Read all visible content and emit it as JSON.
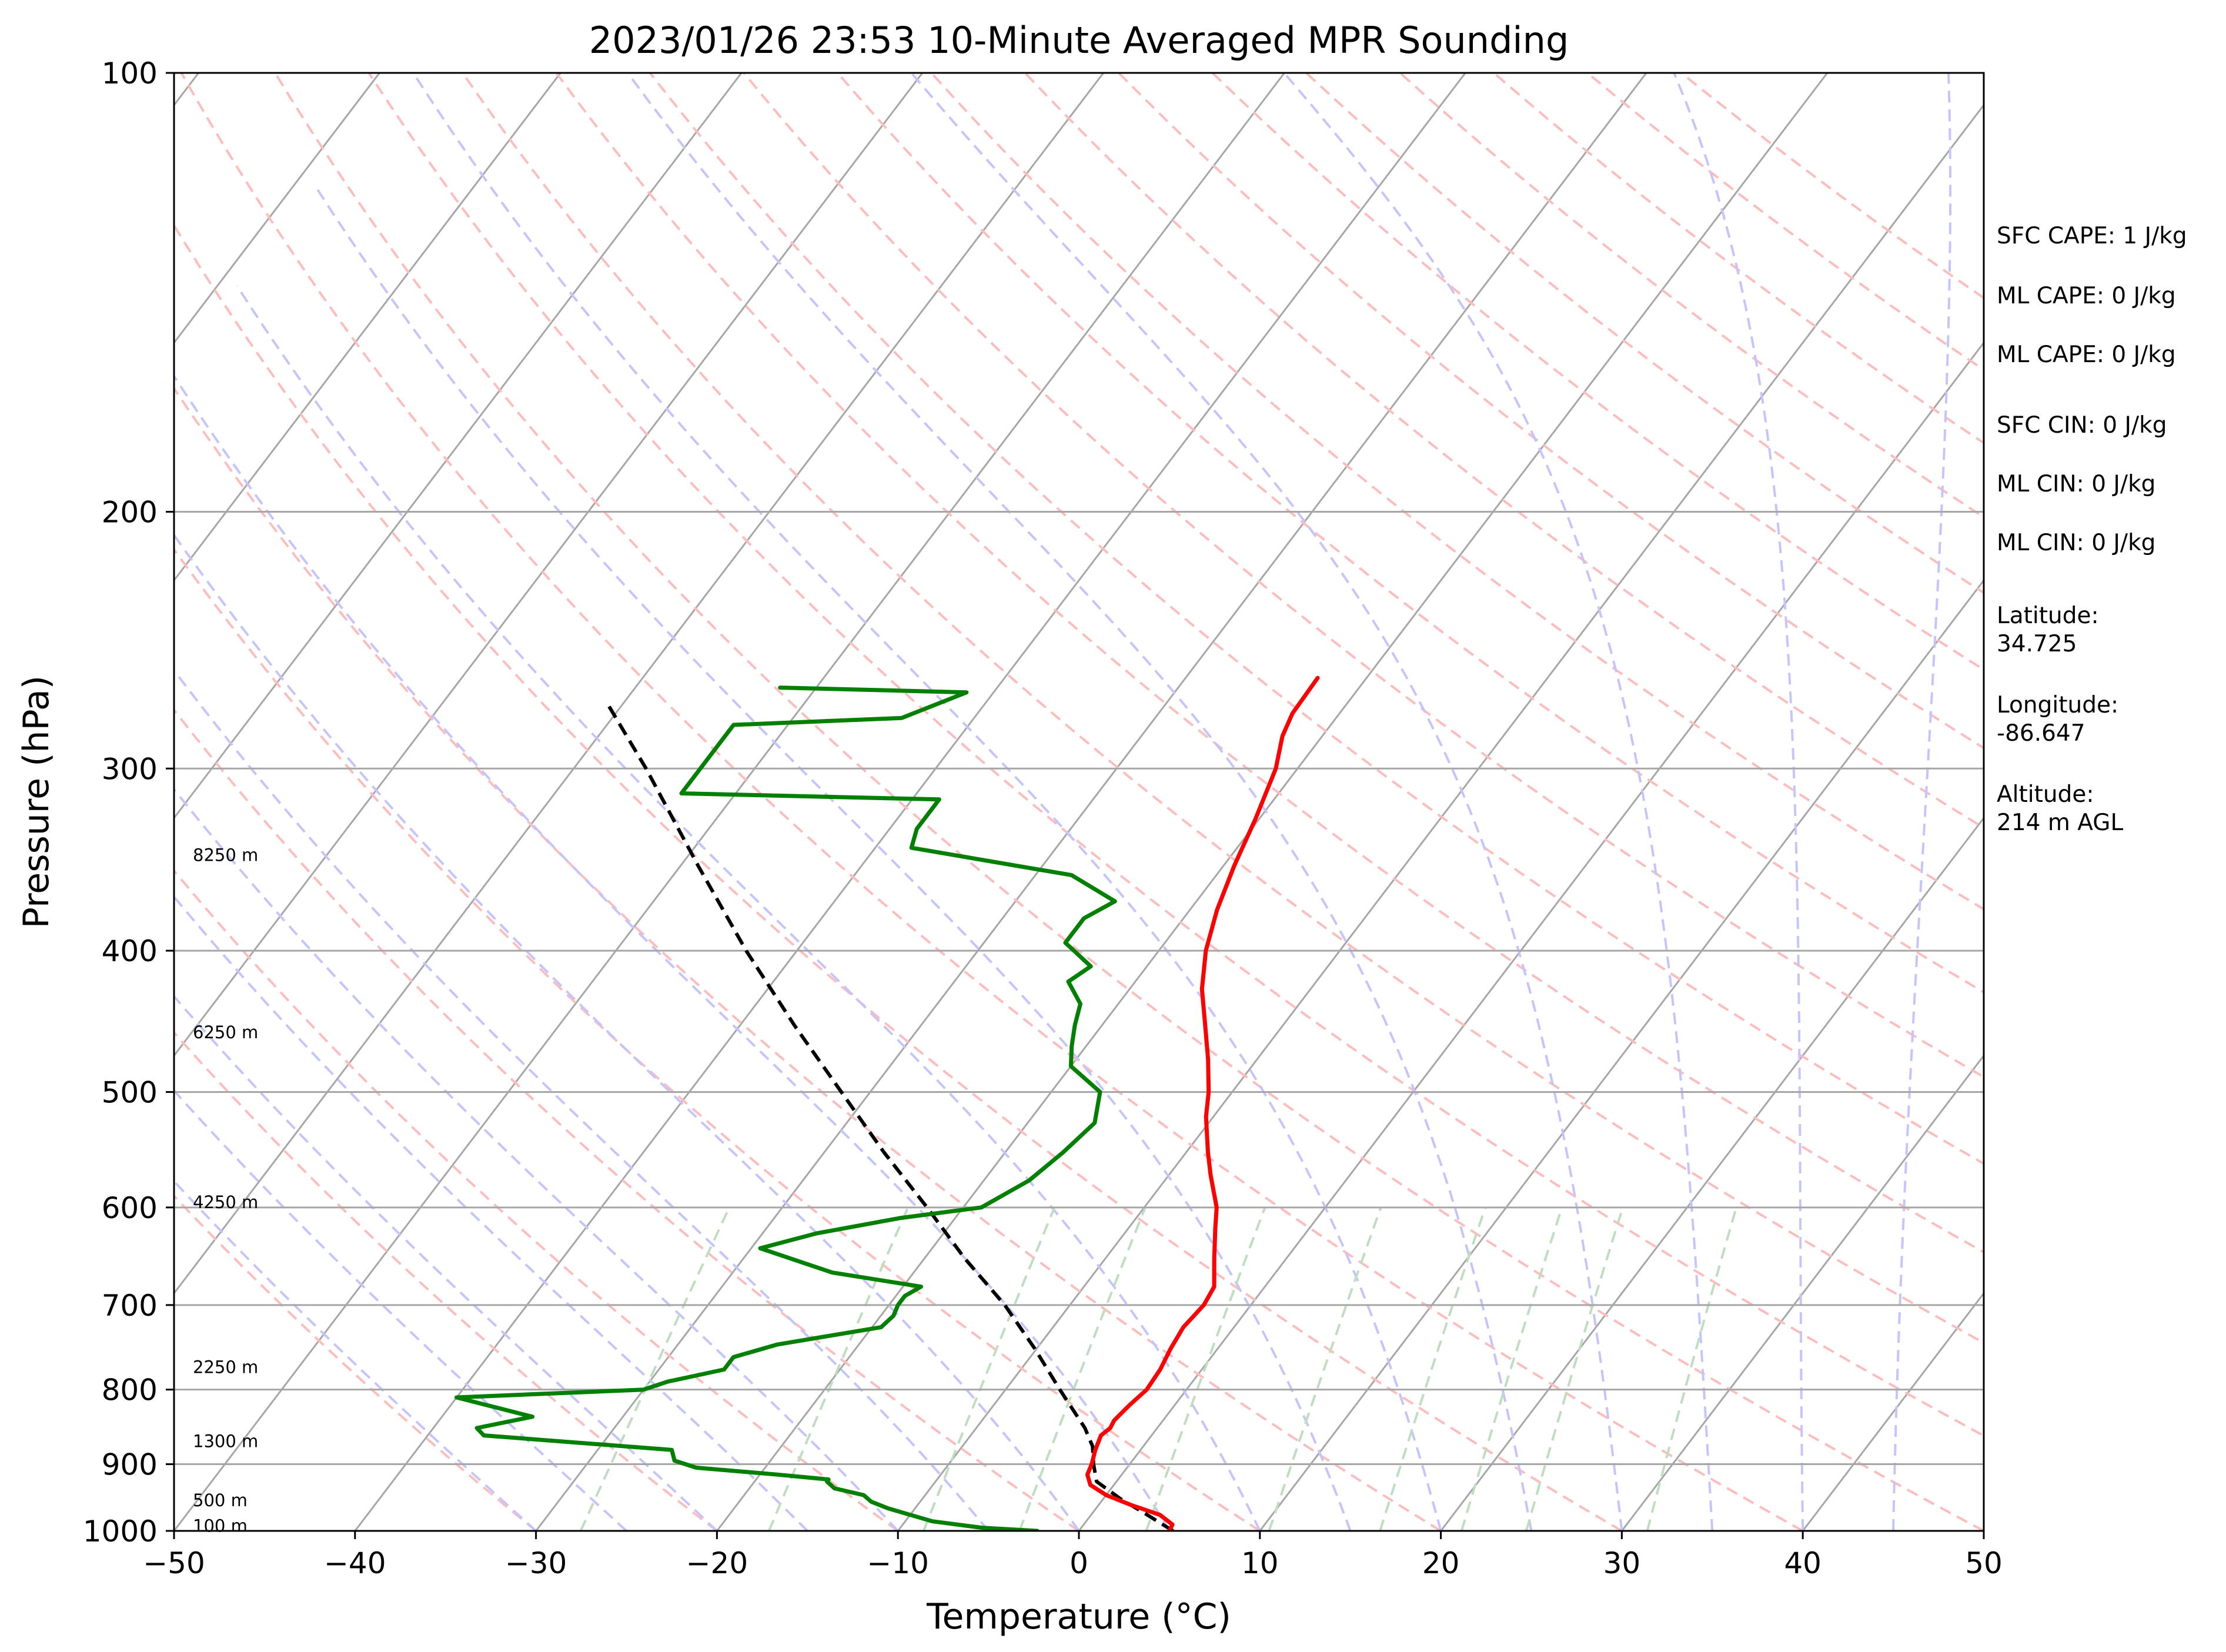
{
  "chart_data": {
    "type": "line",
    "chart_kind": "skew-t log-p",
    "title": "2023/01/26 23:53 10-Minute Averaged MPR Sounding",
    "xlabel": "Temperature (°C)",
    "ylabel": "Pressure (hPa)",
    "xlim": [
      -50,
      50
    ],
    "ylim": [
      1000,
      100
    ],
    "yscale": "log",
    "x_ticks": [
      -50,
      -40,
      -30,
      -20,
      -10,
      0,
      10,
      20,
      30,
      40,
      50
    ],
    "x_tick_labels": [
      "−50",
      "−40",
      "−30",
      "−20",
      "−10",
      "0",
      "10",
      "20",
      "30",
      "40",
      "50"
    ],
    "y_ticks": [
      1000,
      900,
      800,
      700,
      600,
      500,
      400,
      300,
      200,
      100
    ],
    "y_tick_labels": [
      "1000",
      "900",
      "800",
      "700",
      "600",
      "500",
      "400",
      "300",
      "200",
      "100"
    ],
    "isobar_grid": true,
    "background_lines": {
      "isotherms_color": "#a6a6a6",
      "dry_adiabats_color": "#ffbcbc",
      "moist_adiabats_color": "#c4c4ff",
      "mixing_ratio_color": "#bfddbf"
    },
    "series": [
      {
        "role": "temperature",
        "color": "#ff0000",
        "points": [
          {
            "p": 1000,
            "t": 5.0
          },
          {
            "p": 990,
            "t": 4.9
          },
          {
            "p": 975,
            "t": 3.8
          },
          {
            "p": 960,
            "t": 1.8
          },
          {
            "p": 945,
            "t": 0.0
          },
          {
            "p": 930,
            "t": -1.3
          },
          {
            "p": 915,
            "t": -1.9
          },
          {
            "p": 900,
            "t": -2.1
          },
          {
            "p": 880,
            "t": -2.5
          },
          {
            "p": 860,
            "t": -2.8
          },
          {
            "p": 850,
            "t": -2.6
          },
          {
            "p": 840,
            "t": -2.7
          },
          {
            "p": 820,
            "t": -2.5
          },
          {
            "p": 800,
            "t": -2.2
          },
          {
            "p": 775,
            "t": -2.3
          },
          {
            "p": 750,
            "t": -2.6
          },
          {
            "p": 725,
            "t": -2.8
          },
          {
            "p": 700,
            "t": -2.6
          },
          {
            "p": 680,
            "t": -2.8
          },
          {
            "p": 650,
            "t": -4.0
          },
          {
            "p": 620,
            "t": -5.2
          },
          {
            "p": 600,
            "t": -6.0
          },
          {
            "p": 570,
            "t": -7.7
          },
          {
            "p": 550,
            "t": -8.8
          },
          {
            "p": 520,
            "t": -10.4
          },
          {
            "p": 500,
            "t": -11.3
          },
          {
            "p": 475,
            "t": -12.7
          },
          {
            "p": 450,
            "t": -14.3
          },
          {
            "p": 425,
            "t": -16.0
          },
          {
            "p": 400,
            "t": -17.4
          },
          {
            "p": 375,
            "t": -18.5
          },
          {
            "p": 350,
            "t": -19.4
          },
          {
            "p": 325,
            "t": -20.2
          },
          {
            "p": 300,
            "t": -21.2
          },
          {
            "p": 285,
            "t": -22.2
          },
          {
            "p": 275,
            "t": -22.6
          },
          {
            "p": 260,
            "t": -22.7
          }
        ]
      },
      {
        "role": "dewpoint",
        "color": "#008000",
        "points": [
          {
            "p": 1000,
            "t": -2.3
          },
          {
            "p": 995,
            "t": -5.5
          },
          {
            "p": 985,
            "t": -8.5
          },
          {
            "p": 975,
            "t": -10.0
          },
          {
            "p": 965,
            "t": -11.5
          },
          {
            "p": 955,
            "t": -12.7
          },
          {
            "p": 945,
            "t": -13.4
          },
          {
            "p": 935,
            "t": -15.3
          },
          {
            "p": 925,
            "t": -16.0
          },
          {
            "p": 922,
            "t": -16.0
          },
          {
            "p": 915,
            "t": -19.0
          },
          {
            "p": 905,
            "t": -23.8
          },
          {
            "p": 895,
            "t": -25.3
          },
          {
            "p": 880,
            "t": -25.9
          },
          {
            "p": 860,
            "t": -36.9
          },
          {
            "p": 850,
            "t": -37.6
          },
          {
            "p": 835,
            "t": -35.0
          },
          {
            "p": 810,
            "t": -40.0
          },
          {
            "p": 800,
            "t": -30.0
          },
          {
            "p": 790,
            "t": -29.0
          },
          {
            "p": 775,
            "t": -26.4
          },
          {
            "p": 760,
            "t": -26.4
          },
          {
            "p": 745,
            "t": -24.5
          },
          {
            "p": 725,
            "t": -19.5
          },
          {
            "p": 712,
            "t": -19.3
          },
          {
            "p": 700,
            "t": -19.5
          },
          {
            "p": 690,
            "t": -19.5
          },
          {
            "p": 680,
            "t": -19.0
          },
          {
            "p": 665,
            "t": -24.5
          },
          {
            "p": 640,
            "t": -29.5
          },
          {
            "p": 625,
            "t": -27.0
          },
          {
            "p": 610,
            "t": -23.0
          },
          {
            "p": 600,
            "t": -19.0
          },
          {
            "p": 575,
            "t": -17.5
          },
          {
            "p": 550,
            "t": -16.8
          },
          {
            "p": 525,
            "t": -16.3
          },
          {
            "p": 500,
            "t": -17.3
          },
          {
            "p": 480,
            "t": -20.0
          },
          {
            "p": 465,
            "t": -20.8
          },
          {
            "p": 450,
            "t": -21.5
          },
          {
            "p": 435,
            "t": -22.1
          },
          {
            "p": 420,
            "t": -23.7
          },
          {
            "p": 410,
            "t": -23.1
          },
          {
            "p": 395,
            "t": -25.5
          },
          {
            "p": 380,
            "t": -25.5
          },
          {
            "p": 370,
            "t": -24.5
          },
          {
            "p": 355,
            "t": -28.0
          },
          {
            "p": 340,
            "t": -38.0
          },
          {
            "p": 330,
            "t": -38.5
          },
          {
            "p": 315,
            "t": -38.5
          },
          {
            "p": 312,
            "t": -53.0
          },
          {
            "p": 280,
            "t": -53.0
          },
          {
            "p": 277,
            "t": -44.0
          },
          {
            "p": 266,
            "t": -41.5
          },
          {
            "p": 264,
            "t": -52.0
          }
        ]
      },
      {
        "role": "parcel profile",
        "color": "#000000",
        "style": "dashed",
        "points": [
          {
            "p": 1000,
            "t": 5.2
          },
          {
            "p": 975,
            "t": 3.1
          },
          {
            "p": 950,
            "t": 0.9
          },
          {
            "p": 925,
            "t": -1.1
          },
          {
            "p": 900,
            "t": -2.0
          },
          {
            "p": 875,
            "t": -2.8
          },
          {
            "p": 850,
            "t": -4.0
          },
          {
            "p": 800,
            "t": -7.0
          },
          {
            "p": 750,
            "t": -10.1
          },
          {
            "p": 700,
            "t": -13.6
          },
          {
            "p": 650,
            "t": -17.8
          },
          {
            "p": 600,
            "t": -22.0
          },
          {
            "p": 550,
            "t": -26.7
          },
          {
            "p": 500,
            "t": -31.6
          },
          {
            "p": 450,
            "t": -37.0
          },
          {
            "p": 400,
            "t": -42.8
          },
          {
            "p": 350,
            "t": -49.0
          },
          {
            "p": 300,
            "t": -56.0
          },
          {
            "p": 270,
            "t": -61.0
          }
        ]
      }
    ],
    "height_labels": [
      {
        "p": 344,
        "label": "8250 m"
      },
      {
        "p": 455,
        "label": "6250 m"
      },
      {
        "p": 595,
        "label": "4250 m"
      },
      {
        "p": 772,
        "label": "2250 m"
      },
      {
        "p": 868,
        "label": "1300 m"
      },
      {
        "p": 953,
        "label": "500 m"
      },
      {
        "p": 992,
        "label": "100 m"
      }
    ],
    "annotations": [
      "SFC CAPE: 1 J/kg",
      "ML CAPE: 0 J/kg",
      "ML CAPE: 0 J/kg",
      "SFC CIN: 0 J/kg",
      "ML CIN: 0 J/kg",
      "ML CIN: 0 J/kg",
      "Latitude:\n34.725",
      "Longitude:\n-86.647",
      "Altitude:\n214 m AGL"
    ]
  }
}
